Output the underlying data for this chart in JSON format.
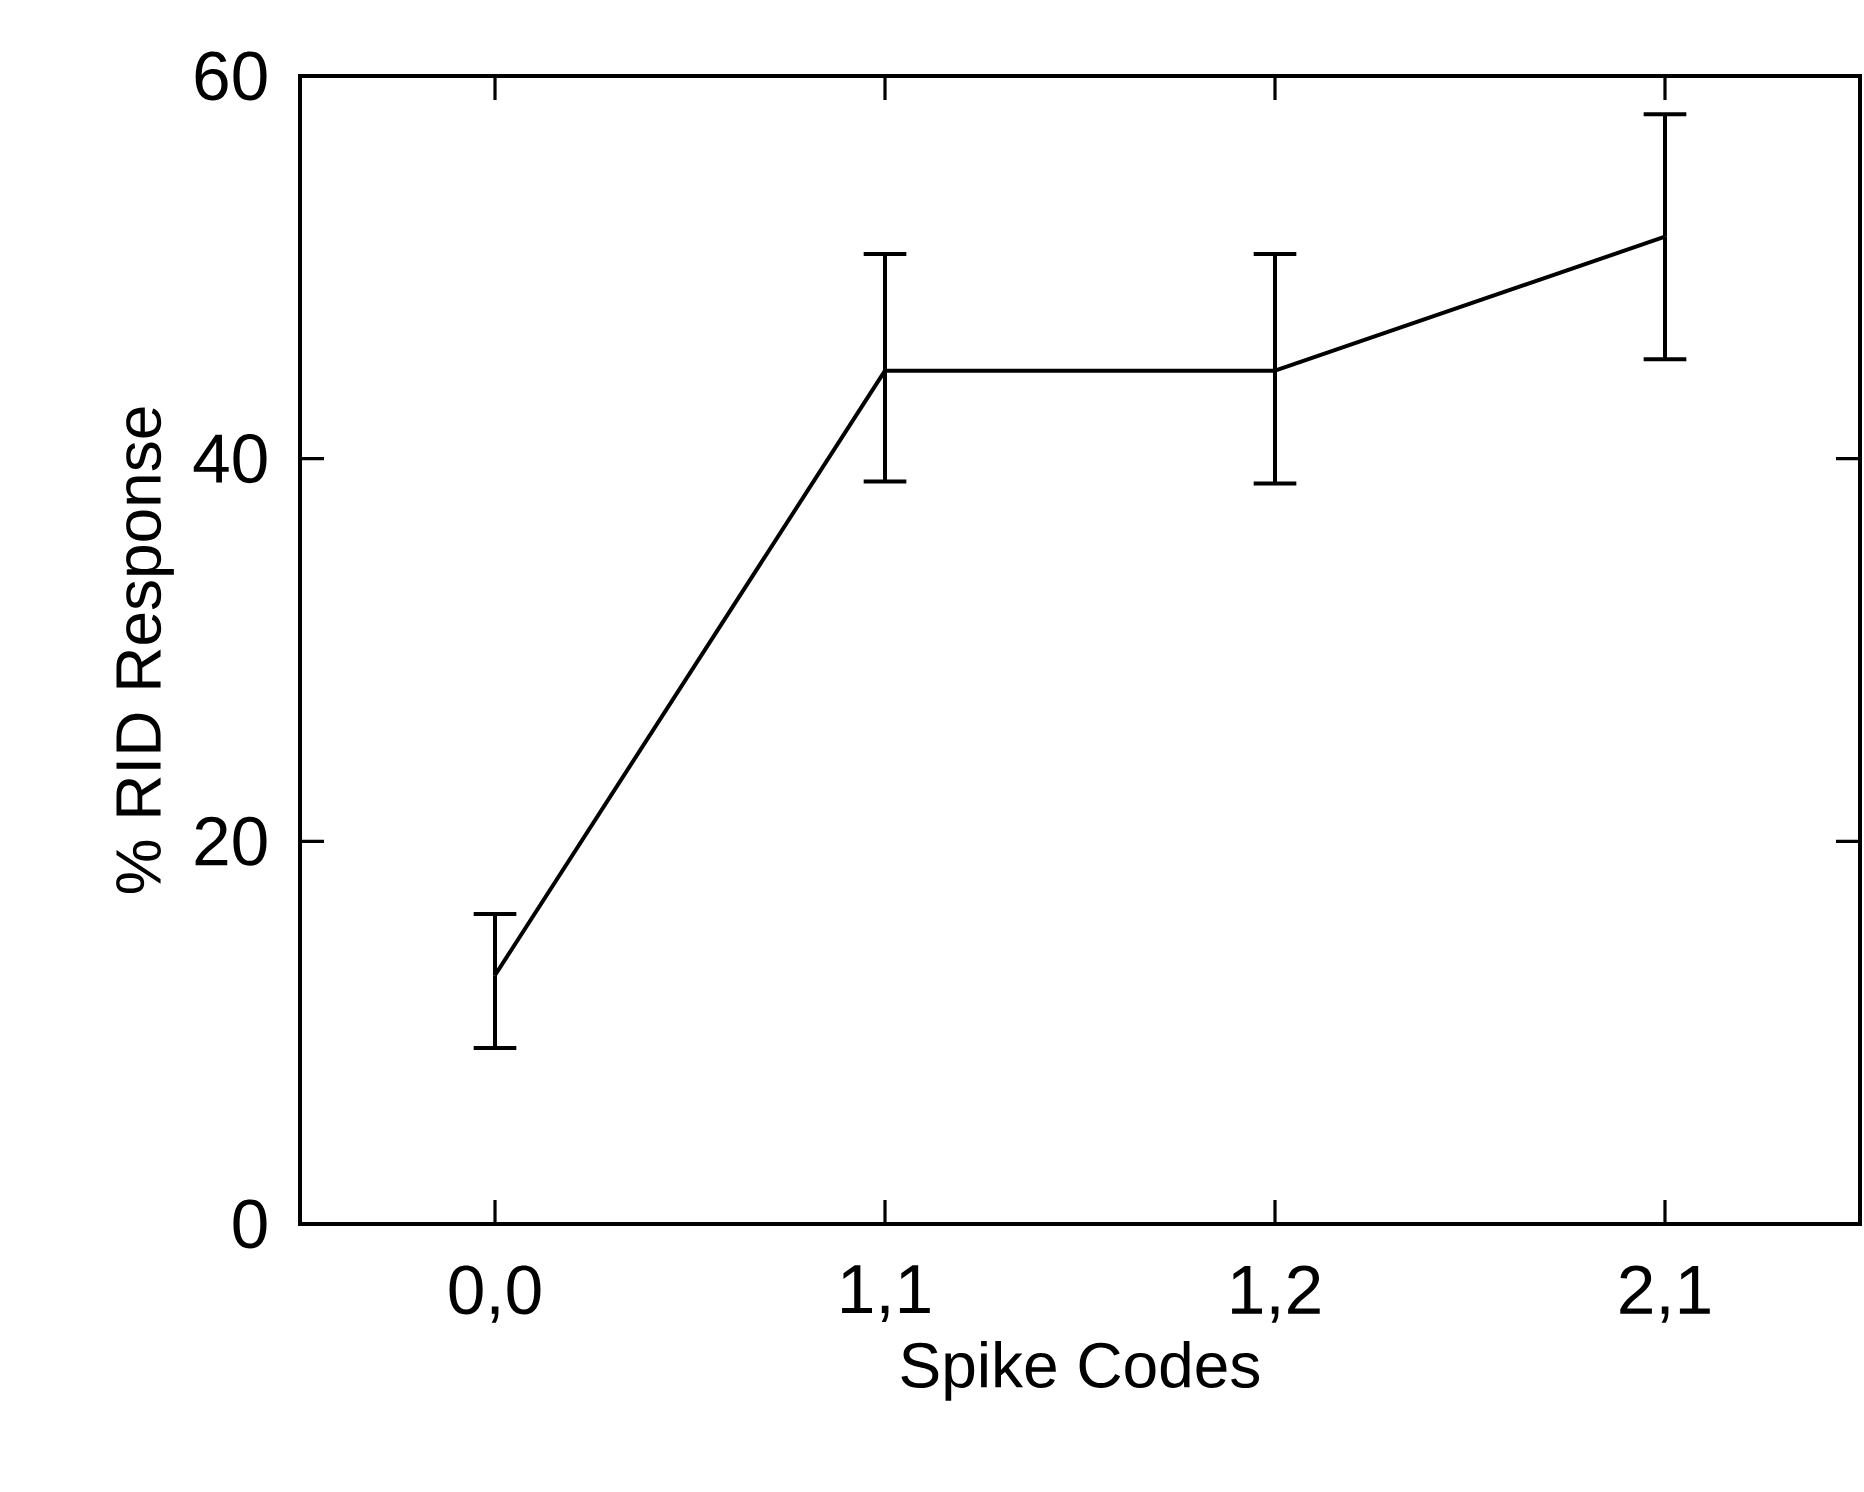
{
  "chart_data": {
    "type": "line",
    "xlabel": "Spike Codes",
    "ylabel": "% RID Response",
    "categories": [
      "0,0",
      "1,1",
      "1,2",
      "2,1"
    ],
    "values": [
      13,
      44.6,
      44.6,
      51.6
    ],
    "errors": [
      [
        9.2,
        16.2
      ],
      [
        38.8,
        50.7
      ],
      [
        38.7,
        50.7
      ],
      [
        45.2,
        58
      ]
    ],
    "color": "#000000",
    "marker": "none",
    "line_style": "solid",
    "grid": false,
    "ylim": [
      0,
      60
    ],
    "yticks": [
      0,
      20,
      40,
      60
    ]
  }
}
